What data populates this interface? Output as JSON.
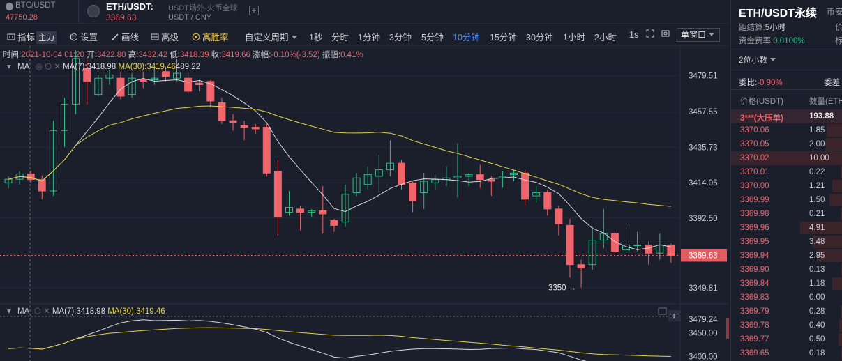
{
  "tabs": [
    {
      "symbol": "BTC/USDT",
      "price": "47750.28"
    },
    {
      "symbol": "ETH/USDT:",
      "price": "3369.63",
      "subtitle": "USDT场外-火币全球",
      "subtitle2": "USDT / CNY"
    }
  ],
  "toolbar": {
    "indicators_label": "指标",
    "main_badge": "主力",
    "settings_label": "设置",
    "draw_label": "画线",
    "advanced_label": "高级",
    "winrate_label": "高胜率",
    "custom_period_label": "自定义周期",
    "periods": [
      "1秒",
      "分时",
      "1分钟",
      "3分钟",
      "5分钟",
      "10分钟",
      "15分钟",
      "30分钟",
      "1小时",
      "2小时",
      "1s"
    ],
    "active_period": "10分钟",
    "window_label": "单窗口"
  },
  "info": {
    "time_label": "时间:",
    "time": "2021-10-04 01:20",
    "open_label": "开:",
    "open": "3422.80",
    "high_label": "高:",
    "high": "3432.42",
    "low_label": "低:",
    "low": "3418.39",
    "close_label": "收:",
    "close": "3419.66",
    "change_label": "涨幅:",
    "change": "-0.10%(-3.52)",
    "amp_label": "振幅:",
    "amp": "0.41%"
  },
  "ma_main": {
    "name": "MA",
    "ma7": "MA(7):3418.98",
    "ma30": "MA(30):3419.46",
    "extra": "489.22"
  },
  "ma_sub": {
    "name": "MA",
    "ma7": "MA(7):3418.98",
    "ma30": "MA(30):3419.46"
  },
  "price_axis": [
    "3479.51",
    "3457.55",
    "3435.73",
    "3414.05",
    "3392.50",
    "3349.81"
  ],
  "current_price": "3369.63",
  "low_marker": "3350",
  "sub_axis": [
    "3479.24",
    "3450.00",
    "3400.00"
  ],
  "colors": {
    "up": "#2ebd85",
    "down": "#f0646c",
    "ma7": "#d8d9de",
    "ma30": "#e4d347",
    "active": "#4f8bf9"
  },
  "right_panel": {
    "title": "ETH/USDT永续",
    "title_sub": "币安",
    "settle_label": "距结算:",
    "settle": "5小时",
    "settle_more": "价",
    "funding_label": "资金费率:",
    "funding": "0.0100%",
    "funding_more": "标",
    "decimals": "2位小数",
    "ratio_label": "委比:",
    "ratio": "-0.90%",
    "diff_label": "委差",
    "col_price": "价格(USDT)",
    "col_qty": "数量(ETH)",
    "orders": [
      {
        "price": "3***(大压单)",
        "qty": "193.88"
      },
      {
        "price": "3370.06",
        "qty": "1.85"
      },
      {
        "price": "3370.05",
        "qty": "2.00"
      },
      {
        "price": "3370.02",
        "qty": "10.00"
      },
      {
        "price": "3370.01",
        "qty": "0.22"
      },
      {
        "price": "3370.00",
        "qty": "1.21"
      },
      {
        "price": "3369.99",
        "qty": "1.50"
      },
      {
        "price": "3369.98",
        "qty": "0.21"
      },
      {
        "price": "3369.96",
        "qty": "4.91"
      },
      {
        "price": "3369.95",
        "qty": "3.48"
      },
      {
        "price": "3369.94",
        "qty": "2.95"
      },
      {
        "price": "3369.90",
        "qty": "0.13"
      },
      {
        "price": "3369.84",
        "qty": "1.18"
      },
      {
        "price": "3369.83",
        "qty": "0.00"
      },
      {
        "price": "3369.79",
        "qty": "0.28"
      },
      {
        "price": "3369.78",
        "qty": "0.40"
      },
      {
        "price": "3369.77",
        "qty": "0.50"
      },
      {
        "price": "3369.65",
        "qty": "0.18"
      }
    ]
  },
  "candles": [
    [
      3414.0,
      3416.2,
      3410.5,
      3418.0
    ],
    [
      3416.2,
      3419.5,
      3413.0,
      3421.0
    ],
    [
      3419.5,
      3416.0,
      3414.0,
      3421.5
    ],
    [
      3416.0,
      3409.0,
      3404.0,
      3418.5
    ],
    [
      3409.0,
      3446.0,
      3406.0,
      3452.0
    ],
    [
      3446.0,
      3462.0,
      3436.0,
      3466.0
    ],
    [
      3462.0,
      3490.0,
      3456.0,
      3495.0
    ],
    [
      3484.0,
      3476.0,
      3462.0,
      3489.0
    ],
    [
      3468.0,
      3478.0,
      3467.0,
      3480.0
    ],
    [
      3478.0,
      3480.0,
      3474.0,
      3483.0
    ],
    [
      3478.0,
      3467.0,
      3465.0,
      3482.0
    ],
    [
      3468.0,
      3478.0,
      3466.0,
      3481.0
    ],
    [
      3477.0,
      3476.0,
      3472.0,
      3482.0
    ],
    [
      3477.0,
      3478.0,
      3474.0,
      3484.0
    ],
    [
      3482.0,
      3479.0,
      3476.0,
      3485.0
    ],
    [
      3478.0,
      3481.0,
      3476.0,
      3490.0
    ],
    [
      3478.0,
      3470.0,
      3468.0,
      3482.0
    ],
    [
      3475.0,
      3474.0,
      3470.0,
      3477.0
    ],
    [
      3476.0,
      3464.0,
      3460.0,
      3477.0
    ],
    [
      3463.0,
      3452.0,
      3450.0,
      3466.0
    ],
    [
      3452.0,
      3451.0,
      3446.0,
      3456.0
    ],
    [
      3449.0,
      3448.0,
      3440.0,
      3452.0
    ],
    [
      3448.0,
      3447.0,
      3444.0,
      3450.0
    ],
    [
      3448.0,
      3420.0,
      3418.0,
      3450.0
    ],
    [
      3421.0,
      3393.0,
      3382.0,
      3428.0
    ],
    [
      3396.0,
      3399.0,
      3394.0,
      3409.0
    ],
    [
      3398.0,
      3396.0,
      3385.0,
      3400.0
    ],
    [
      3396.0,
      3397.0,
      3393.0,
      3398.0
    ],
    [
      3397.0,
      3395.0,
      3383.0,
      3412.0
    ],
    [
      3391.0,
      3388.0,
      3384.0,
      3392.0
    ],
    [
      3390.0,
      3407.0,
      3387.0,
      3413.0
    ],
    [
      3408.0,
      3417.0,
      3406.0,
      3420.0
    ],
    [
      3413.0,
      3419.0,
      3410.0,
      3424.0
    ],
    [
      3418.0,
      3422.0,
      3408.0,
      3431.0
    ],
    [
      3422.0,
      3426.0,
      3418.0,
      3440.0
    ],
    [
      3426.0,
      3413.0,
      3410.0,
      3428.0
    ],
    [
      3414.0,
      3403.0,
      3396.0,
      3415.0
    ],
    [
      3408.0,
      3415.0,
      3398.0,
      3420.0
    ],
    [
      3414.0,
      3416.0,
      3410.0,
      3419.0
    ],
    [
      3416.0,
      3417.0,
      3412.0,
      3424.0
    ],
    [
      3417.0,
      3418.0,
      3405.0,
      3438.0
    ],
    [
      3418.0,
      3419.0,
      3412.0,
      3420.0
    ],
    [
      3419.0,
      3416.0,
      3411.0,
      3425.0
    ],
    [
      3416.0,
      3415.0,
      3406.0,
      3418.0
    ],
    [
      3417.0,
      3418.0,
      3411.0,
      3421.0
    ],
    [
      3419.0,
      3420.0,
      3415.0,
      3422.0
    ],
    [
      3420.0,
      3404.0,
      3400.0,
      3422.0
    ],
    [
      3406.0,
      3408.0,
      3402.0,
      3412.0
    ],
    [
      3408.0,
      3398.0,
      3394.0,
      3410.0
    ],
    [
      3398.0,
      3389.0,
      3382.0,
      3400.0
    ],
    [
      3388.0,
      3364.0,
      3356.0,
      3392.0
    ],
    [
      3364.0,
      3362.0,
      3350.0,
      3367.0
    ],
    [
      3364.0,
      3379.0,
      3361.0,
      3387.0
    ],
    [
      3379.0,
      3383.0,
      3374.0,
      3398.0
    ],
    [
      3383.0,
      3372.0,
      3370.0,
      3385.0
    ],
    [
      3373.0,
      3376.0,
      3371.0,
      3387.0
    ],
    [
      3376.0,
      3376.0,
      3372.0,
      3384.0
    ],
    [
      3376.0,
      3371.0,
      3364.0,
      3378.0
    ],
    [
      3371.0,
      3376.0,
      3367.0,
      3383.0
    ],
    [
      3376.0,
      3369.6,
      3365.0,
      3377.0
    ]
  ]
}
